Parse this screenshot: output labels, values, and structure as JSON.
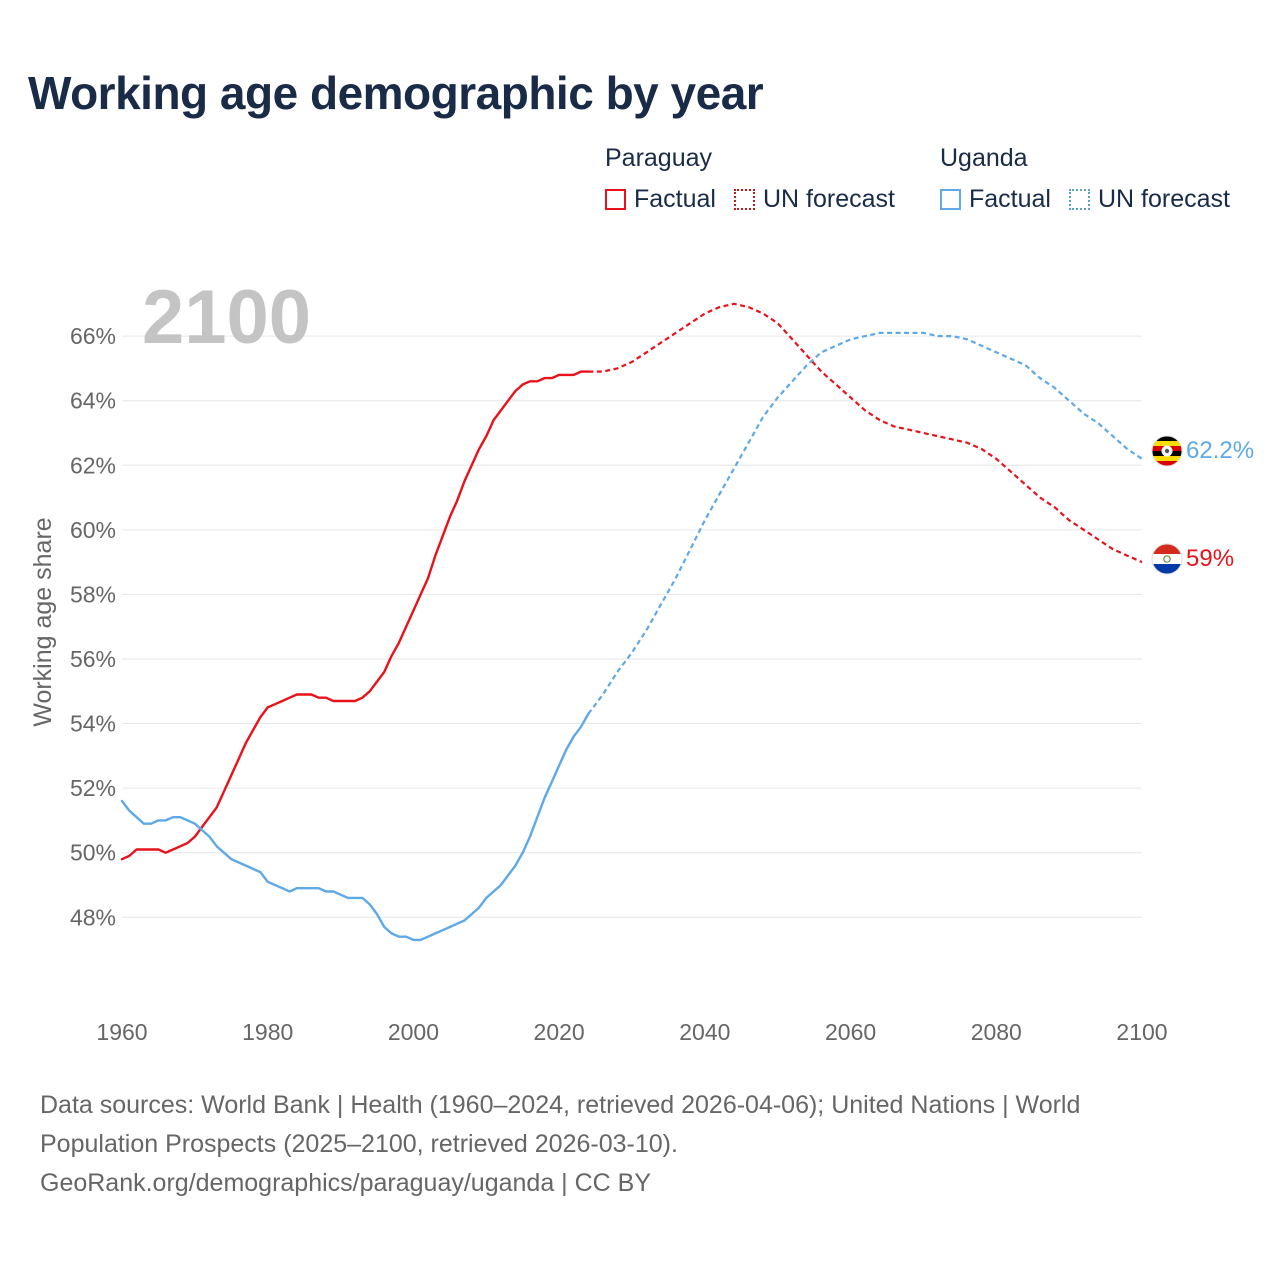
{
  "title": "Working age demographic by year",
  "legend": {
    "groups": [
      {
        "name": "Paraguay",
        "factual": "Factual",
        "forecast": "UN forecast"
      },
      {
        "name": "Uganda",
        "factual": "Factual",
        "forecast": "UN forecast"
      }
    ]
  },
  "footer": {
    "line1": "Data sources: World Bank | Health (1960–2024, retrieved 2026-04-06); United Nations | World",
    "line2": "Population Prospects (2025–2100, retrieved 2026-03-10).",
    "line3": "GeoRank.org/demographics/paraguay/uganda | CC BY"
  },
  "colors": {
    "paraguay": "#e8121a",
    "uganda": "#5ea9e6",
    "grid": "#e6e6e6",
    "axis_text": "#666666",
    "year_label": "#c4c4c4"
  },
  "chart_data": {
    "type": "line",
    "year_label": "2100",
    "ylabel": "Working age share",
    "xlim": [
      1960,
      2100
    ],
    "ylim": [
      45.5,
      67.8
    ],
    "x_ticks": [
      1960,
      1980,
      2000,
      2020,
      2040,
      2060,
      2080,
      2100
    ],
    "y_ticks": [
      48,
      50,
      52,
      54,
      56,
      58,
      60,
      62,
      64,
      66
    ],
    "y_tick_labels": [
      "48%",
      "50%",
      "52%",
      "54%",
      "56%",
      "58%",
      "60%",
      "62%",
      "64%",
      "66%"
    ],
    "factual_range": [
      1960,
      2024
    ],
    "forecast_range": [
      2024,
      2100
    ],
    "series": [
      {
        "name": "Paraguay",
        "end_label": "59%",
        "points": [
          [
            1960,
            49.8
          ],
          [
            1961,
            49.9
          ],
          [
            1962,
            50.1
          ],
          [
            1963,
            50.1
          ],
          [
            1964,
            50.1
          ],
          [
            1965,
            50.1
          ],
          [
            1966,
            50.0
          ],
          [
            1967,
            50.1
          ],
          [
            1968,
            50.2
          ],
          [
            1969,
            50.3
          ],
          [
            1970,
            50.5
          ],
          [
            1971,
            50.8
          ],
          [
            1972,
            51.1
          ],
          [
            1973,
            51.4
          ],
          [
            1974,
            51.9
          ],
          [
            1975,
            52.4
          ],
          [
            1976,
            52.9
          ],
          [
            1977,
            53.4
          ],
          [
            1978,
            53.8
          ],
          [
            1979,
            54.2
          ],
          [
            1980,
            54.5
          ],
          [
            1981,
            54.6
          ],
          [
            1982,
            54.7
          ],
          [
            1983,
            54.8
          ],
          [
            1984,
            54.9
          ],
          [
            1985,
            54.9
          ],
          [
            1986,
            54.9
          ],
          [
            1987,
            54.8
          ],
          [
            1988,
            54.8
          ],
          [
            1989,
            54.7
          ],
          [
            1990,
            54.7
          ],
          [
            1991,
            54.7
          ],
          [
            1992,
            54.7
          ],
          [
            1993,
            54.8
          ],
          [
            1994,
            55.0
          ],
          [
            1995,
            55.3
          ],
          [
            1996,
            55.6
          ],
          [
            1997,
            56.1
          ],
          [
            1998,
            56.5
          ],
          [
            1999,
            57.0
          ],
          [
            2000,
            57.5
          ],
          [
            2001,
            58.0
          ],
          [
            2002,
            58.5
          ],
          [
            2003,
            59.2
          ],
          [
            2004,
            59.8
          ],
          [
            2005,
            60.4
          ],
          [
            2006,
            60.9
          ],
          [
            2007,
            61.5
          ],
          [
            2008,
            62.0
          ],
          [
            2009,
            62.5
          ],
          [
            2010,
            62.9
          ],
          [
            2011,
            63.4
          ],
          [
            2012,
            63.7
          ],
          [
            2013,
            64.0
          ],
          [
            2014,
            64.3
          ],
          [
            2015,
            64.5
          ],
          [
            2016,
            64.6
          ],
          [
            2017,
            64.6
          ],
          [
            2018,
            64.7
          ],
          [
            2019,
            64.7
          ],
          [
            2020,
            64.8
          ],
          [
            2021,
            64.8
          ],
          [
            2022,
            64.8
          ],
          [
            2023,
            64.9
          ],
          [
            2024,
            64.9
          ],
          [
            2026,
            64.9
          ],
          [
            2028,
            65.0
          ],
          [
            2030,
            65.2
          ],
          [
            2032,
            65.5
          ],
          [
            2034,
            65.8
          ],
          [
            2036,
            66.1
          ],
          [
            2038,
            66.4
          ],
          [
            2040,
            66.7
          ],
          [
            2042,
            66.9
          ],
          [
            2044,
            67.0
          ],
          [
            2046,
            66.9
          ],
          [
            2048,
            66.7
          ],
          [
            2050,
            66.4
          ],
          [
            2052,
            65.9
          ],
          [
            2054,
            65.4
          ],
          [
            2056,
            64.9
          ],
          [
            2058,
            64.5
          ],
          [
            2060,
            64.1
          ],
          [
            2062,
            63.7
          ],
          [
            2064,
            63.4
          ],
          [
            2066,
            63.2
          ],
          [
            2068,
            63.1
          ],
          [
            2070,
            63.0
          ],
          [
            2072,
            62.9
          ],
          [
            2074,
            62.8
          ],
          [
            2076,
            62.7
          ],
          [
            2078,
            62.5
          ],
          [
            2080,
            62.2
          ],
          [
            2082,
            61.8
          ],
          [
            2084,
            61.4
          ],
          [
            2086,
            61.0
          ],
          [
            2088,
            60.7
          ],
          [
            2090,
            60.3
          ],
          [
            2092,
            60.0
          ],
          [
            2094,
            59.7
          ],
          [
            2096,
            59.4
          ],
          [
            2098,
            59.2
          ],
          [
            2100,
            59.0
          ]
        ]
      },
      {
        "name": "Uganda",
        "end_label": "62.2%",
        "points": [
          [
            1960,
            51.6
          ],
          [
            1961,
            51.3
          ],
          [
            1962,
            51.1
          ],
          [
            1963,
            50.9
          ],
          [
            1964,
            50.9
          ],
          [
            1965,
            51.0
          ],
          [
            1966,
            51.0
          ],
          [
            1967,
            51.1
          ],
          [
            1968,
            51.1
          ],
          [
            1969,
            51.0
          ],
          [
            1970,
            50.9
          ],
          [
            1971,
            50.7
          ],
          [
            1972,
            50.5
          ],
          [
            1973,
            50.2
          ],
          [
            1974,
            50.0
          ],
          [
            1975,
            49.8
          ],
          [
            1976,
            49.7
          ],
          [
            1977,
            49.6
          ],
          [
            1978,
            49.5
          ],
          [
            1979,
            49.4
          ],
          [
            1980,
            49.1
          ],
          [
            1981,
            49.0
          ],
          [
            1982,
            48.9
          ],
          [
            1983,
            48.8
          ],
          [
            1984,
            48.9
          ],
          [
            1985,
            48.9
          ],
          [
            1986,
            48.9
          ],
          [
            1987,
            48.9
          ],
          [
            1988,
            48.8
          ],
          [
            1989,
            48.8
          ],
          [
            1990,
            48.7
          ],
          [
            1991,
            48.6
          ],
          [
            1992,
            48.6
          ],
          [
            1993,
            48.6
          ],
          [
            1994,
            48.4
          ],
          [
            1995,
            48.1
          ],
          [
            1996,
            47.7
          ],
          [
            1997,
            47.5
          ],
          [
            1998,
            47.4
          ],
          [
            1999,
            47.4
          ],
          [
            2000,
            47.3
          ],
          [
            2001,
            47.3
          ],
          [
            2002,
            47.4
          ],
          [
            2003,
            47.5
          ],
          [
            2004,
            47.6
          ],
          [
            2005,
            47.7
          ],
          [
            2006,
            47.8
          ],
          [
            2007,
            47.9
          ],
          [
            2008,
            48.1
          ],
          [
            2009,
            48.3
          ],
          [
            2010,
            48.6
          ],
          [
            2011,
            48.8
          ],
          [
            2012,
            49.0
          ],
          [
            2013,
            49.3
          ],
          [
            2014,
            49.6
          ],
          [
            2015,
            50.0
          ],
          [
            2016,
            50.5
          ],
          [
            2017,
            51.1
          ],
          [
            2018,
            51.7
          ],
          [
            2019,
            52.2
          ],
          [
            2020,
            52.7
          ],
          [
            2021,
            53.2
          ],
          [
            2022,
            53.6
          ],
          [
            2023,
            53.9
          ],
          [
            2024,
            54.3
          ],
          [
            2026,
            54.9
          ],
          [
            2028,
            55.6
          ],
          [
            2030,
            56.2
          ],
          [
            2032,
            56.9
          ],
          [
            2034,
            57.7
          ],
          [
            2036,
            58.5
          ],
          [
            2038,
            59.4
          ],
          [
            2040,
            60.3
          ],
          [
            2042,
            61.1
          ],
          [
            2044,
            61.9
          ],
          [
            2046,
            62.7
          ],
          [
            2048,
            63.5
          ],
          [
            2050,
            64.1
          ],
          [
            2052,
            64.6
          ],
          [
            2054,
            65.1
          ],
          [
            2056,
            65.5
          ],
          [
            2058,
            65.7
          ],
          [
            2060,
            65.9
          ],
          [
            2062,
            66.0
          ],
          [
            2064,
            66.1
          ],
          [
            2066,
            66.1
          ],
          [
            2068,
            66.1
          ],
          [
            2070,
            66.1
          ],
          [
            2072,
            66.0
          ],
          [
            2074,
            66.0
          ],
          [
            2076,
            65.9
          ],
          [
            2078,
            65.7
          ],
          [
            2080,
            65.5
          ],
          [
            2082,
            65.3
          ],
          [
            2084,
            65.1
          ],
          [
            2086,
            64.7
          ],
          [
            2088,
            64.4
          ],
          [
            2090,
            64.0
          ],
          [
            2092,
            63.6
          ],
          [
            2094,
            63.3
          ],
          [
            2096,
            62.9
          ],
          [
            2098,
            62.5
          ],
          [
            2100,
            62.2
          ]
        ]
      }
    ]
  }
}
